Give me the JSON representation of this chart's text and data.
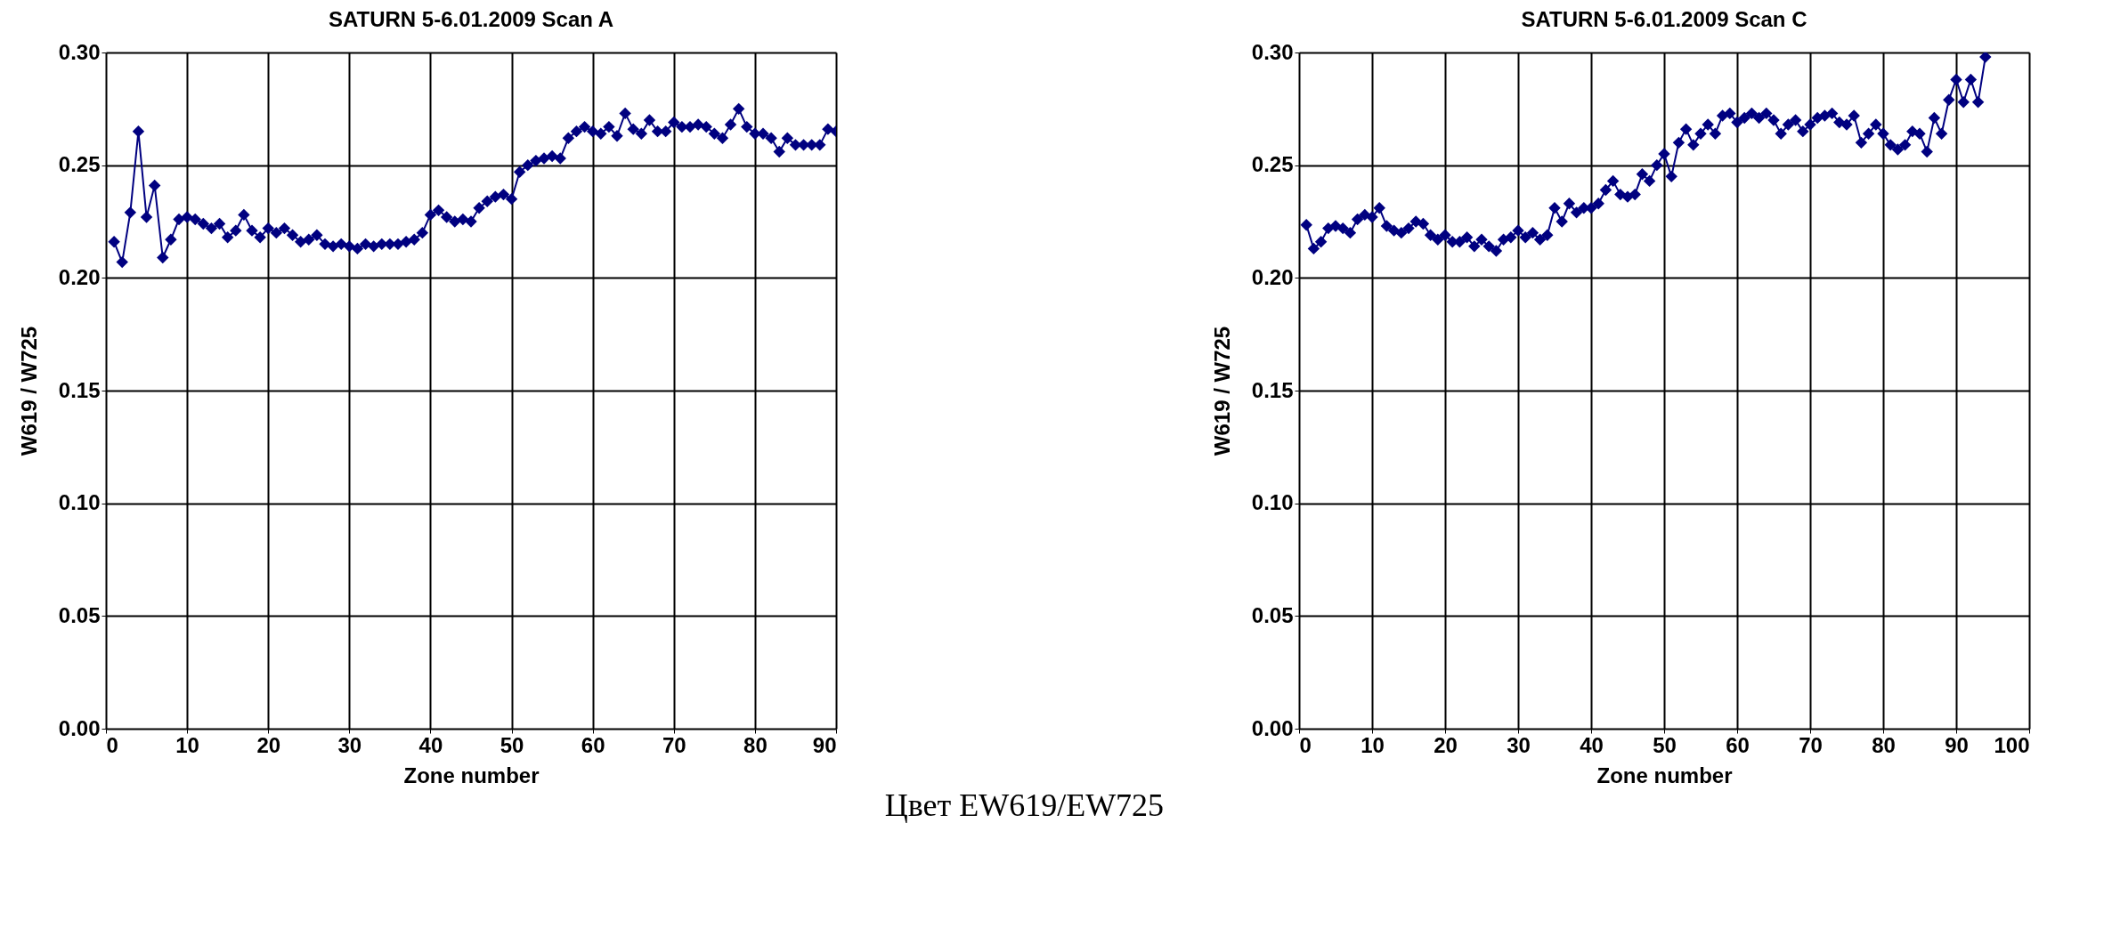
{
  "chart_data": [
    {
      "type": "line",
      "title": "SATURN 5-6.01.2009   Scan A",
      "xlabel": "Zone number",
      "ylabel": "W619 / W725",
      "marker": "diamond",
      "line_style": "solid",
      "grid": true,
      "x": [
        1,
        2,
        3,
        4,
        5,
        6,
        7,
        8,
        9,
        10,
        11,
        12,
        13,
        14,
        15,
        16,
        17,
        18,
        19,
        20,
        21,
        22,
        23,
        24,
        25,
        26,
        27,
        28,
        29,
        30,
        31,
        32,
        33,
        34,
        35,
        36,
        37,
        38,
        39,
        40,
        41,
        42,
        43,
        44,
        45,
        46,
        47,
        48,
        49,
        50,
        51,
        52,
        53,
        54,
        55,
        56,
        57,
        58,
        59,
        60,
        61,
        62,
        63,
        64,
        65,
        66,
        67,
        68,
        69,
        70,
        71,
        72,
        73,
        74,
        75,
        76,
        77,
        78,
        79,
        80,
        81,
        82,
        83,
        84,
        85,
        86,
        87,
        88,
        89,
        90
      ],
      "series": [
        {
          "color": "#000080",
          "values": [
            0.216,
            0.207,
            0.229,
            0.265,
            0.227,
            0.241,
            0.209,
            0.217,
            0.226,
            0.227,
            0.226,
            0.224,
            0.222,
            0.224,
            0.218,
            0.221,
            0.228,
            0.221,
            0.218,
            0.222,
            0.22,
            0.222,
            0.219,
            0.216,
            0.217,
            0.219,
            0.215,
            0.214,
            0.215,
            0.214,
            0.213,
            0.215,
            0.214,
            0.215,
            0.215,
            0.215,
            0.216,
            0.217,
            0.22,
            0.228,
            0.23,
            0.227,
            0.225,
            0.226,
            0.225,
            0.231,
            0.234,
            0.236,
            0.237,
            0.235,
            0.247,
            0.25,
            0.252,
            0.253,
            0.254,
            0.253,
            0.262,
            0.265,
            0.267,
            0.265,
            0.264,
            0.267,
            0.263,
            0.273,
            0.266,
            0.264,
            0.27,
            0.265,
            0.265,
            0.269,
            0.267,
            0.267,
            0.268,
            0.267,
            0.264,
            0.262,
            0.268,
            0.275,
            0.267,
            0.264,
            0.264,
            0.262,
            0.256,
            0.262,
            0.259,
            0.259,
            0.259,
            0.259,
            0.266,
            0.265
          ]
        }
      ],
      "xlim": [
        0,
        90
      ],
      "xticks": [
        0,
        10,
        20,
        30,
        40,
        50,
        60,
        70,
        80,
        90
      ],
      "ylim": [
        0,
        0.3
      ],
      "yticks": [
        {
          "value": 0,
          "label": "0.00"
        },
        {
          "value": 0.05,
          "label": "0.05"
        },
        {
          "value": 0.1,
          "label": "0.10"
        },
        {
          "value": 0.15,
          "label": "0.15"
        },
        {
          "value": 0.2,
          "label": "0.20"
        },
        {
          "value": 0.25,
          "label": "0.25"
        },
        {
          "value": 0.3,
          "label": "0.30"
        }
      ],
      "annotations": [
        "Цвет EW619/EW725"
      ]
    },
    {
      "type": "line",
      "title": "SATURN 5-6.01.2009 Scan C",
      "xlabel": "Zone number",
      "ylabel": "W619 / W725",
      "marker": "diamond",
      "line_style": "solid",
      "grid": true,
      "x": [
        1,
        2,
        3,
        4,
        5,
        6,
        7,
        8,
        9,
        10,
        11,
        12,
        13,
        14,
        15,
        16,
        17,
        18,
        19,
        20,
        21,
        22,
        23,
        24,
        25,
        26,
        27,
        28,
        29,
        30,
        31,
        32,
        33,
        34,
        35,
        36,
        37,
        38,
        39,
        40,
        41,
        42,
        43,
        44,
        45,
        46,
        47,
        48,
        49,
        50,
        51,
        52,
        53,
        54,
        55,
        56,
        57,
        58,
        59,
        60,
        61,
        62,
        63,
        64,
        65,
        66,
        67,
        68,
        69,
        70,
        71,
        72,
        73,
        74,
        75,
        76,
        77,
        78,
        79,
        80,
        81,
        82,
        83,
        84,
        85,
        86,
        87,
        88,
        89,
        90,
        91,
        92,
        93,
        94
      ],
      "series": [
        {
          "color": "#000080",
          "values": [
            0.2235,
            0.213,
            0.216,
            0.222,
            0.223,
            0.222,
            0.22,
            0.226,
            0.228,
            0.227,
            0.231,
            0.223,
            0.221,
            0.22,
            0.222,
            0.225,
            0.224,
            0.219,
            0.217,
            0.219,
            0.216,
            0.216,
            0.218,
            0.214,
            0.217,
            0.214,
            0.212,
            0.217,
            0.218,
            0.221,
            0.218,
            0.22,
            0.217,
            0.219,
            0.231,
            0.225,
            0.233,
            0.229,
            0.231,
            0.231,
            0.233,
            0.239,
            0.243,
            0.237,
            0.236,
            0.237,
            0.246,
            0.243,
            0.25,
            0.255,
            0.245,
            0.26,
            0.266,
            0.259,
            0.264,
            0.268,
            0.264,
            0.272,
            0.273,
            0.269,
            0.271,
            0.273,
            0.271,
            0.273,
            0.27,
            0.264,
            0.268,
            0.27,
            0.265,
            0.268,
            0.271,
            0.272,
            0.273,
            0.269,
            0.268,
            0.272,
            0.26,
            0.264,
            0.268,
            0.264,
            0.259,
            0.257,
            0.259,
            0.265,
            0.264,
            0.256,
            0.271,
            0.264,
            0.279,
            0.288,
            0.278,
            0.288,
            0.278,
            0.298
          ]
        }
      ],
      "xlim": [
        0,
        100
      ],
      "xticks": [
        0,
        10,
        20,
        30,
        40,
        50,
        60,
        70,
        80,
        90,
        100
      ],
      "ylim": [
        0,
        0.3
      ],
      "yticks": [
        {
          "value": 0,
          "label": "0.00"
        },
        {
          "value": 0.05,
          "label": "0.05"
        },
        {
          "value": 0.1,
          "label": "0.10"
        },
        {
          "value": 0.15,
          "label": "0.15"
        },
        {
          "value": 0.2,
          "label": "0.20"
        },
        {
          "value": 0.25,
          "label": "0.25"
        },
        {
          "value": 0.3,
          "label": "0.30"
        }
      ]
    }
  ]
}
